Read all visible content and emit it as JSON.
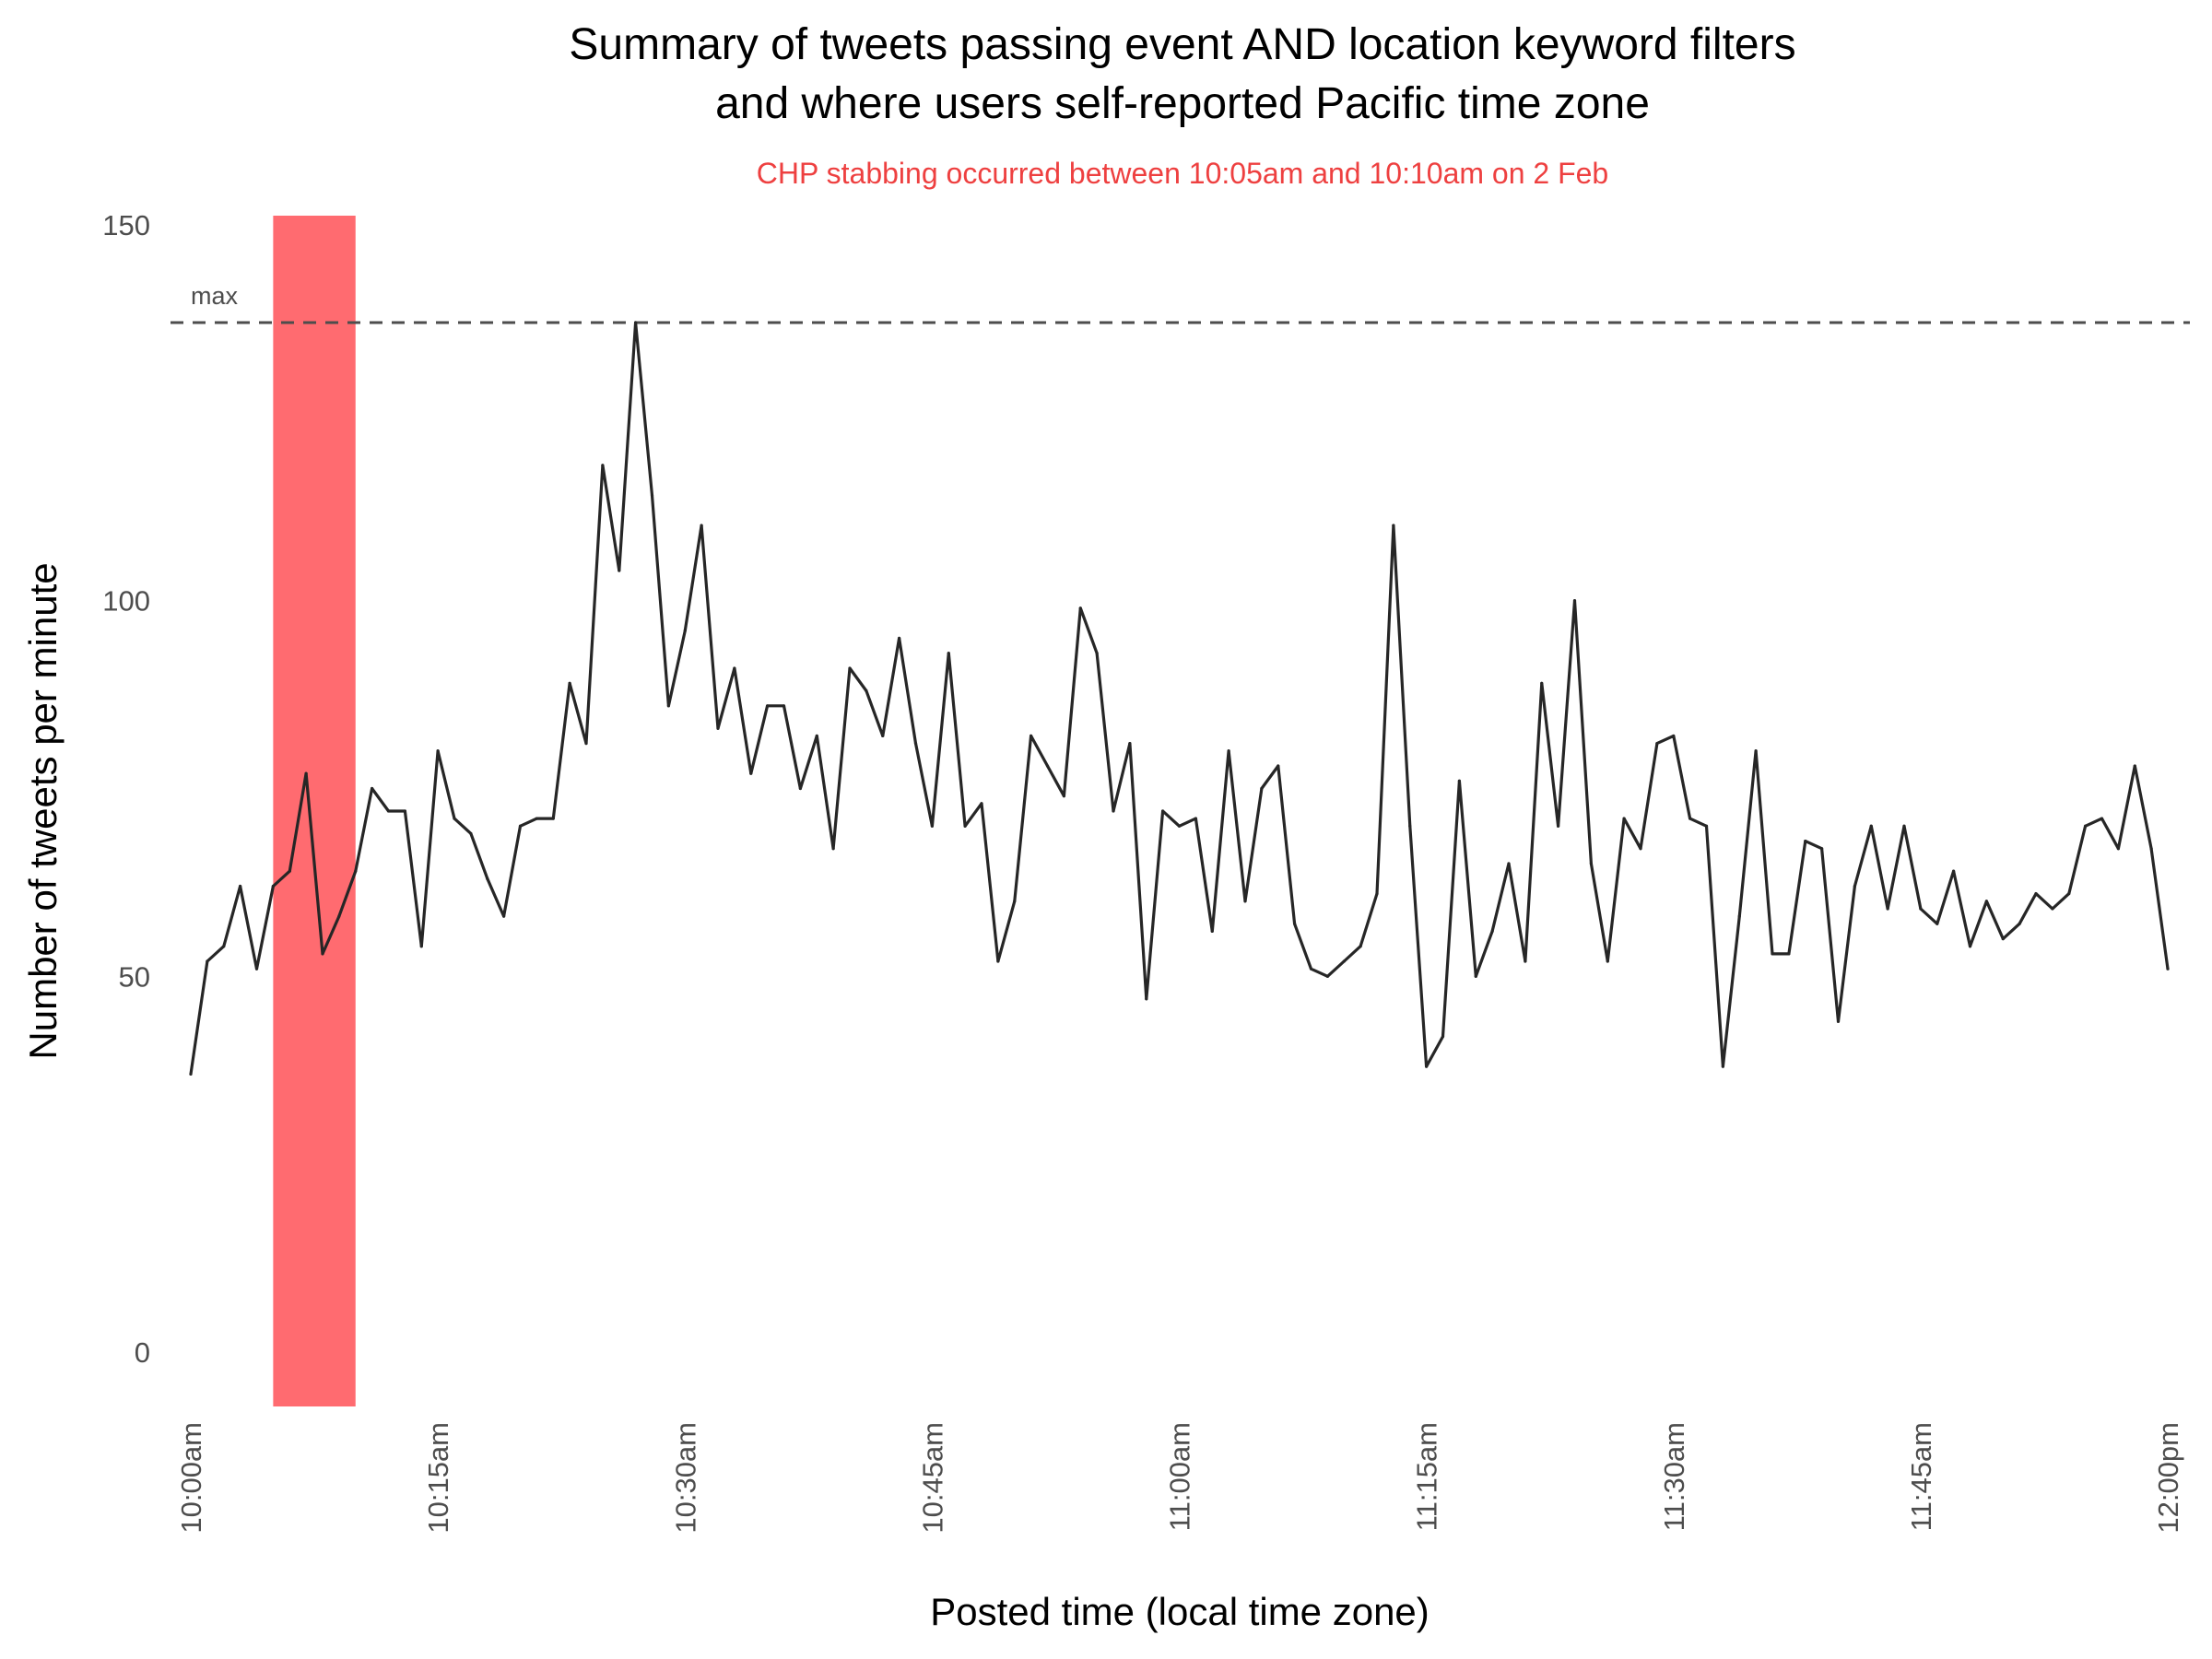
{
  "chart_data": {
    "type": "line",
    "title_line1": "Summary of tweets passing event AND location keyword filters",
    "title_line2": "and where users self-reported Pacific time zone",
    "subtitle": "CHP stabbing occurred between 10:05am and 10:10am on 2 Feb",
    "xlabel": "Posted time (local time zone)",
    "ylabel": "Number of tweets per minute",
    "x_ticks": [
      "10:00am",
      "10:15am",
      "10:30am",
      "10:45am",
      "11:00am",
      "11:15am",
      "11:30am",
      "11:45am",
      "12:00pm"
    ],
    "x_tick_minutes": [
      0,
      15,
      30,
      45,
      60,
      75,
      90,
      105,
      120
    ],
    "x_range_minutes": [
      0,
      120
    ],
    "y_ticks": [
      0,
      50,
      100,
      150
    ],
    "ylim": [
      0,
      150
    ],
    "max_line": {
      "label": "max",
      "value": 137
    },
    "highlight": {
      "start_minute": 5,
      "end_minute": 10,
      "color": "#ff6b70"
    },
    "colors": {
      "line": "#262626",
      "max_line": "#4d4d4d",
      "subtitle": "#ee4040"
    },
    "grid": false,
    "legend": "none",
    "series": [
      {
        "minute": [
          0,
          1,
          2,
          3,
          4,
          5,
          6,
          7,
          8,
          9,
          10,
          11,
          12,
          13,
          14,
          15,
          16,
          17,
          18,
          19,
          20,
          21,
          22,
          23,
          24,
          25,
          26,
          27,
          28,
          29,
          30,
          31,
          32,
          33,
          34,
          35,
          36,
          37,
          38,
          39,
          40,
          41,
          42,
          43,
          44,
          45,
          46,
          47,
          48,
          49,
          50,
          51,
          52,
          53,
          54,
          55,
          56,
          57,
          58,
          59,
          60,
          61,
          62,
          63,
          64,
          65,
          66,
          67,
          68,
          69,
          70,
          71,
          72,
          73,
          74,
          75,
          76,
          77,
          78,
          79,
          80,
          81,
          82,
          83,
          84,
          85,
          86,
          87,
          88,
          89,
          90,
          91,
          92,
          93,
          94,
          95,
          96,
          97,
          98,
          99,
          100,
          101,
          102,
          103,
          104,
          105,
          106,
          107,
          108,
          109,
          110,
          111,
          112,
          113,
          114,
          115,
          116,
          117,
          118,
          119,
          120
        ],
        "values": [
          37,
          52,
          54,
          62,
          51,
          62,
          64,
          77,
          53,
          58,
          64,
          75,
          72,
          72,
          54,
          80,
          71,
          69,
          63,
          58,
          70,
          71,
          71,
          89,
          81,
          118,
          104,
          137,
          114,
          86,
          96,
          110,
          83,
          91,
          77,
          86,
          86,
          75,
          82,
          67,
          91,
          88,
          82,
          95,
          81,
          70,
          93,
          70,
          73,
          52,
          60,
          82,
          78,
          74,
          99,
          93,
          72,
          81,
          47,
          72,
          70,
          71,
          56,
          80,
          60,
          75,
          78,
          57,
          51,
          50,
          52,
          54,
          61,
          110,
          70,
          38,
          42,
          76,
          50,
          56,
          65,
          52,
          89,
          70,
          100,
          65,
          52,
          71,
          67,
          81,
          82,
          71,
          70,
          38,
          58,
          80,
          53,
          53,
          68,
          67,
          44,
          62,
          70,
          59,
          70,
          59,
          57,
          64,
          54,
          60,
          55,
          57,
          61,
          59,
          61,
          70,
          71,
          67,
          78,
          67,
          51
        ]
      }
    ]
  }
}
